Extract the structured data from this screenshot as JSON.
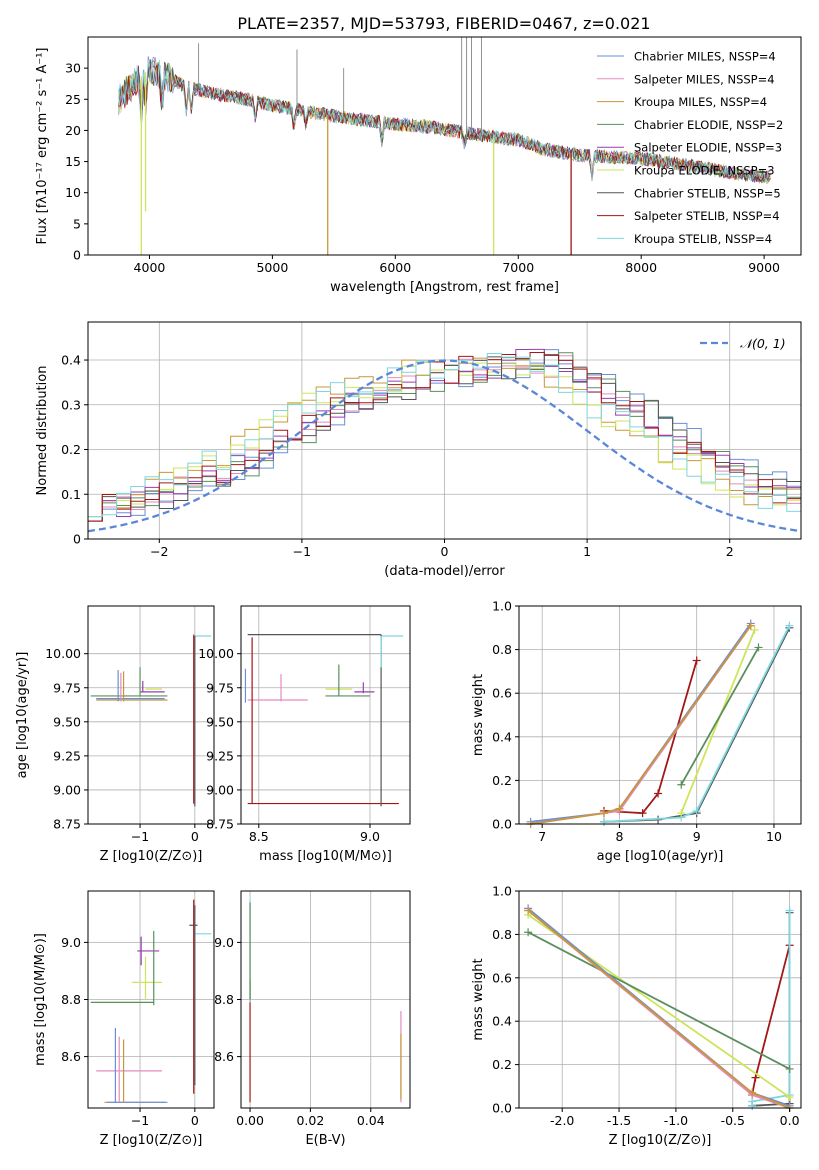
{
  "figure": {
    "title": "PLATE=2357, MJD=53793, FIBERID=0467, z=0.021"
  },
  "palette": {
    "Chabrier MILES": "#6a8fd6",
    "Salpeter MILES": "#e58bbd",
    "Kroupa MILES": "#c9973a",
    "Chabrier ELODIE": "#5a8f5c",
    "Salpeter ELODIE": "#9a3db0",
    "Kroupa ELODIE": "#cde55a",
    "Chabrier STELIB": "#555555",
    "Salpeter STELIB": "#a31717",
    "Kroupa STELIB": "#7fd6e0"
  },
  "chart_data": [
    {
      "id": "spectrum",
      "type": "line",
      "xlabel": "wavelength [Angstrom, rest frame]",
      "ylabel": "Flux [fλ10⁻¹⁷ erg cm⁻² s⁻¹ A⁻¹]",
      "xlim": [
        3500,
        9300
      ],
      "ylim": [
        0,
        35
      ],
      "xticks": [
        4000,
        5000,
        6000,
        7000,
        8000,
        9000
      ],
      "yticks": [
        0,
        5,
        10,
        15,
        20,
        25,
        30
      ],
      "grid": false,
      "legend_position": "top-right",
      "series": [
        {
          "name": "Chabrier MILES, NSSP=4",
          "color_key": "Chabrier MILES"
        },
        {
          "name": "Salpeter MILES, NSSP=4",
          "color_key": "Salpeter MILES"
        },
        {
          "name": "Kroupa MILES, NSSP=4",
          "color_key": "Kroupa MILES"
        },
        {
          "name": "Chabrier ELODIE, NSSP=2",
          "color_key": "Chabrier ELODIE"
        },
        {
          "name": "Salpeter ELODIE, NSSP=3",
          "color_key": "Salpeter ELODIE"
        },
        {
          "name": "Kroupa ELODIE, NSSP=3",
          "color_key": "Kroupa ELODIE"
        },
        {
          "name": "Chabrier STELIB, NSSP=5",
          "color_key": "Chabrier STELIB"
        },
        {
          "name": "Salpeter STELIB, NSSP=4",
          "color_key": "Salpeter STELIB"
        },
        {
          "name": "Kroupa STELIB, NSSP=4",
          "color_key": "Kroupa STELIB"
        }
      ],
      "continuum_x": [
        3750,
        3900,
        4000,
        4100,
        4300,
        4500,
        4800,
        5000,
        5300,
        5600,
        6000,
        6300,
        6600,
        7000,
        7200,
        7500,
        8000,
        8500,
        8800,
        9000
      ],
      "continuum_y": [
        25,
        28,
        30,
        29,
        27,
        26,
        25,
        24,
        23,
        22,
        21,
        20.5,
        19.5,
        18.5,
        17,
        16,
        15.5,
        14,
        13,
        12.5
      ],
      "dips": [
        {
          "x": 3934,
          "y": 0,
          "color_key": "Kroupa ELODIE"
        },
        {
          "x": 3968,
          "y": 7,
          "color_key": "Kroupa ELODIE"
        },
        {
          "x": 5450,
          "y": 0,
          "color_key": "Kroupa MILES"
        },
        {
          "x": 6800,
          "y": 0,
          "color_key": "Kroupa ELODIE"
        },
        {
          "x": 7430,
          "y": 0,
          "color_key": "Salpeter STELIB"
        }
      ],
      "spikes": [
        {
          "x": 4400,
          "y": 34
        },
        {
          "x": 5200,
          "y": 33
        },
        {
          "x": 5580,
          "y": 30
        },
        {
          "x": 6540,
          "y": 35
        },
        {
          "x": 6580,
          "y": 35
        },
        {
          "x": 6620,
          "y": 35
        },
        {
          "x": 6700,
          "y": 35
        }
      ]
    },
    {
      "id": "residuals",
      "type": "histogram",
      "xlabel": "(data-model)/error",
      "ylabel": "Normed distribution",
      "xlim": [
        -2.5,
        2.5
      ],
      "ylim": [
        0,
        0.485
      ],
      "xticks": [
        -2,
        -1,
        0,
        1,
        2
      ],
      "yticks": [
        0.0,
        0.1,
        0.2,
        0.3,
        0.4
      ],
      "grid": true,
      "legend": [
        "𝒩(0, 1)"
      ],
      "legend_position": "top-right",
      "bin_width": 0.1,
      "hist_base": [
        0.07,
        0.07,
        0.08,
        0.08,
        0.09,
        0.1,
        0.11,
        0.12,
        0.14,
        0.15,
        0.17,
        0.18,
        0.2,
        0.22,
        0.24,
        0.26,
        0.28,
        0.3,
        0.31,
        0.32,
        0.33,
        0.34,
        0.35,
        0.36,
        0.37,
        0.37,
        0.38,
        0.38,
        0.38,
        0.39,
        0.4,
        0.4,
        0.39,
        0.38,
        0.36,
        0.34,
        0.32,
        0.3,
        0.28,
        0.26,
        0.24,
        0.22,
        0.2,
        0.18,
        0.16,
        0.15,
        0.13,
        0.12,
        0.1,
        0.09
      ],
      "gaussian": {
        "mean": 0,
        "sigma": 1,
        "color": "#5b87d9"
      }
    },
    {
      "id": "age-vs-Z",
      "type": "errorbar",
      "xlabel": "Z [log10(Z/Z⊙)]",
      "ylabel": "age  [log10(age/yr)]",
      "xlim": [
        -1.95,
        0.35
      ],
      "ylim": [
        8.75,
        10.35
      ],
      "xticks": [
        -1,
        0
      ],
      "yticks": [
        8.75,
        9.0,
        9.25,
        9.5,
        9.75,
        10.0
      ],
      "grid": true,
      "hbars": [
        {
          "y": 9.69,
          "x0": -1.9,
          "x1": -0.5,
          "color_key": "Chabrier ELODIE"
        },
        {
          "y": 9.66,
          "x0": -1.8,
          "x1": -0.5,
          "color_key": "Kroupa MILES"
        },
        {
          "y": 9.67,
          "x0": -1.8,
          "x1": -0.55,
          "color_key": "Chabrier MILES"
        },
        {
          "y": 9.74,
          "x0": -0.9,
          "x1": -0.6,
          "color_key": "Kroupa ELODIE"
        },
        {
          "y": 9.72,
          "x0": -1.0,
          "x1": -0.55,
          "color_key": "Salpeter ELODIE"
        },
        {
          "y": 10.13,
          "x0": 0.0,
          "x1": 0.3,
          "color_key": "Kroupa STELIB"
        }
      ],
      "vbars": [
        {
          "x": -1.4,
          "y0": 9.65,
          "y1": 9.88,
          "color_key": "Chabrier MILES"
        },
        {
          "x": -1.35,
          "y0": 9.65,
          "y1": 9.86,
          "color_key": "Salpeter MILES"
        },
        {
          "x": -1.3,
          "y0": 9.65,
          "y1": 9.87,
          "color_key": "Kroupa MILES"
        },
        {
          "x": -1.0,
          "y0": 9.69,
          "y1": 9.9,
          "color_key": "Chabrier ELODIE"
        },
        {
          "x": -0.95,
          "y0": 9.72,
          "y1": 9.8,
          "color_key": "Salpeter ELODIE"
        },
        {
          "x": -0.02,
          "y0": 8.9,
          "y1": 10.14,
          "color_key": "Salpeter STELIB"
        },
        {
          "x": 0.0,
          "y0": 8.88,
          "y1": 10.13,
          "color_key": "Chabrier STELIB"
        }
      ]
    },
    {
      "id": "age-vs-mass",
      "type": "errorbar",
      "xlabel": "mass [log10(M/M⊙)]",
      "ylabel": "",
      "xlim": [
        8.42,
        9.18
      ],
      "ylim": [
        8.75,
        10.35
      ],
      "xticks": [
        8.5,
        9.0
      ],
      "yticks": [
        8.75,
        9.0,
        9.25,
        9.5,
        9.75,
        10.0
      ],
      "grid": true,
      "hbars": [
        {
          "y": 8.9,
          "x0": 8.45,
          "x1": 9.13,
          "color_key": "Salpeter STELIB"
        },
        {
          "y": 10.14,
          "x0": 8.45,
          "x1": 9.05,
          "color_key": "Chabrier STELIB"
        },
        {
          "y": 10.13,
          "x0": 9.05,
          "x1": 9.15,
          "color_key": "Kroupa STELIB"
        },
        {
          "y": 9.66,
          "x0": 8.45,
          "x1": 8.72,
          "color_key": "Salpeter MILES"
        },
        {
          "y": 9.69,
          "x0": 8.8,
          "x1": 9.0,
          "color_key": "Chabrier ELODIE"
        },
        {
          "y": 9.72,
          "x0": 8.93,
          "x1": 9.02,
          "color_key": "Salpeter ELODIE"
        },
        {
          "y": 9.74,
          "x0": 8.8,
          "x1": 8.92,
          "color_key": "Kroupa ELODIE"
        }
      ],
      "vbars": [
        {
          "x": 8.44,
          "y0": 9.64,
          "y1": 9.89,
          "color_key": "Chabrier MILES"
        },
        {
          "x": 8.47,
          "y0": 8.9,
          "y1": 10.12,
          "color_key": "Salpeter STELIB"
        },
        {
          "x": 8.6,
          "y0": 9.65,
          "y1": 9.85,
          "color_key": "Salpeter MILES"
        },
        {
          "x": 8.86,
          "y0": 9.69,
          "y1": 9.92,
          "color_key": "Chabrier ELODIE"
        },
        {
          "x": 8.97,
          "y0": 9.71,
          "y1": 9.79,
          "color_key": "Salpeter ELODIE"
        },
        {
          "x": 9.05,
          "y0": 8.88,
          "y1": 10.14,
          "color_key": "Chabrier STELIB"
        },
        {
          "x": 9.05,
          "y0": 9.9,
          "y1": 10.13,
          "color_key": "Kroupa STELIB"
        }
      ]
    },
    {
      "id": "mass-weight-vs-age",
      "type": "line",
      "xlabel": "age  [log10(age/yr)]",
      "ylabel": "mass weight",
      "xlim": [
        6.7,
        10.35
      ],
      "ylim": [
        0.0,
        1.0
      ],
      "xticks": [
        7,
        8,
        9,
        10
      ],
      "yticks": [
        0.0,
        0.2,
        0.4,
        0.6,
        0.8,
        1.0
      ],
      "grid": true,
      "series": [
        {
          "color_key": "Salpeter STELIB",
          "x": [
            7.8,
            8.3,
            8.5,
            9.0
          ],
          "y": [
            0.06,
            0.05,
            0.14,
            0.75
          ]
        },
        {
          "color_key": "Chabrier STELIB",
          "x": [
            7.8,
            8.5,
            9.0,
            10.2
          ],
          "y": [
            0.01,
            0.02,
            0.05,
            0.9
          ]
        },
        {
          "color_key": "Kroupa STELIB",
          "x": [
            7.8,
            8.8,
            9.0,
            10.2
          ],
          "y": [
            0.01,
            0.03,
            0.06,
            0.91
          ]
        },
        {
          "color_key": "Kroupa ELODIE",
          "x": [
            8.8,
            9.75
          ],
          "y": [
            0.05,
            0.89
          ]
        },
        {
          "color_key": "Chabrier ELODIE",
          "x": [
            8.8,
            9.8
          ],
          "y": [
            0.18,
            0.81
          ]
        },
        {
          "color_key": "Chabrier MILES",
          "x": [
            6.85,
            7.8,
            8.0,
            9.7
          ],
          "y": [
            0.01,
            0.05,
            0.07,
            0.92
          ]
        },
        {
          "color_key": "Salpeter MILES",
          "x": [
            6.85,
            7.8,
            8.0,
            9.7
          ],
          "y": [
            0.0,
            0.05,
            0.06,
            0.91
          ]
        },
        {
          "color_key": "Kroupa MILES",
          "x": [
            6.85,
            7.8,
            8.0,
            9.7
          ],
          "y": [
            0.0,
            0.05,
            0.07,
            0.91
          ]
        }
      ]
    },
    {
      "id": "mass-vs-Z",
      "type": "errorbar",
      "xlabel": "Z [log10(Z/Z⊙)]",
      "ylabel": "mass [log10(M/M⊙)]",
      "xlim": [
        -1.95,
        0.35
      ],
      "ylim": [
        8.42,
        9.18
      ],
      "xticks": [
        -1,
        0
      ],
      "yticks": [
        8.6,
        8.8,
        9.0
      ],
      "grid": true,
      "hbars": [
        {
          "y": 8.79,
          "x0": -1.9,
          "x1": -0.75,
          "color_key": "Chabrier ELODIE"
        },
        {
          "y": 8.97,
          "x0": -1.05,
          "x1": -0.65,
          "color_key": "Salpeter ELODIE"
        },
        {
          "y": 8.86,
          "x0": -1.15,
          "x1": -0.6,
          "color_key": "Kroupa ELODIE"
        },
        {
          "y": 8.55,
          "x0": -1.8,
          "x1": -0.6,
          "color_key": "Salpeter MILES"
        },
        {
          "y": 8.44,
          "x0": -1.65,
          "x1": -0.55,
          "color_key": "Kroupa MILES"
        },
        {
          "y": 8.44,
          "x0": -1.6,
          "x1": -0.5,
          "color_key": "Chabrier MILES"
        },
        {
          "y": 9.03,
          "x0": 0.0,
          "x1": 0.3,
          "color_key": "Kroupa STELIB"
        },
        {
          "y": 9.06,
          "x0": -0.1,
          "x1": 0.05,
          "color_key": "Chabrier STELIB"
        }
      ],
      "vbars": [
        {
          "x": -1.45,
          "y0": 8.44,
          "y1": 8.7,
          "color_key": "Chabrier MILES"
        },
        {
          "x": -1.38,
          "y0": 8.44,
          "y1": 8.67,
          "color_key": "Salpeter MILES"
        },
        {
          "x": -1.3,
          "y0": 8.44,
          "y1": 8.66,
          "color_key": "Kroupa MILES"
        },
        {
          "x": -0.75,
          "y0": 8.78,
          "y1": 9.04,
          "color_key": "Chabrier ELODIE"
        },
        {
          "x": -0.98,
          "y0": 8.92,
          "y1": 9.02,
          "color_key": "Salpeter ELODIE"
        },
        {
          "x": -0.9,
          "y0": 8.8,
          "y1": 8.95,
          "color_key": "Kroupa ELODIE"
        },
        {
          "x": -0.02,
          "y0": 8.47,
          "y1": 9.15,
          "color_key": "Salpeter STELIB"
        },
        {
          "x": 0.0,
          "y0": 8.5,
          "y1": 9.13,
          "color_key": "Chabrier STELIB"
        }
      ]
    },
    {
      "id": "mass-vs-EBV",
      "type": "errorbar",
      "xlabel": "E(B-V)",
      "ylabel": "",
      "xlim": [
        -0.003,
        0.053
      ],
      "ylim": [
        8.42,
        9.18
      ],
      "xticks": [
        0.0,
        0.02,
        0.04
      ],
      "yticks": [
        8.6,
        8.8,
        9.0
      ],
      "grid": true,
      "vbars": [
        {
          "x": 0.0,
          "y0": 8.44,
          "y1": 8.87,
          "color_key": "Salpeter STELIB"
        },
        {
          "x": 0.0,
          "y0": 8.79,
          "y1": 9.15,
          "color_key": "Kroupa STELIB"
        },
        {
          "x": 0.0,
          "y0": 8.8,
          "y1": 9.14,
          "color_key": "Chabrier ELODIE"
        },
        {
          "x": 0.05,
          "y0": 8.44,
          "y1": 8.76,
          "color_key": "Salpeter MILES"
        },
        {
          "x": 0.05,
          "y0": 8.45,
          "y1": 8.68,
          "color_key": "Kroupa MILES"
        }
      ],
      "hbars": []
    },
    {
      "id": "mass-weight-vs-Z",
      "type": "line",
      "xlabel": "Z [log10(Z/Z⊙)]",
      "ylabel": "mass weight",
      "xlim": [
        -2.38,
        0.1
      ],
      "ylim": [
        0.0,
        1.0
      ],
      "xticks": [
        -2.0,
        -1.5,
        -1.0,
        -0.5,
        0.0
      ],
      "yticks": [
        0.0,
        0.2,
        0.4,
        0.6,
        0.8,
        1.0
      ],
      "grid": true,
      "series": [
        {
          "color_key": "Salpeter STELIB",
          "x": [
            -0.33,
            -0.3,
            0.0
          ],
          "y": [
            0.06,
            0.14,
            0.75
          ]
        },
        {
          "color_key": "Chabrier STELIB",
          "x": [
            -0.33,
            0.0,
            0.0
          ],
          "y": [
            0.01,
            0.02,
            0.9
          ]
        },
        {
          "color_key": "Kroupa STELIB",
          "x": [
            -0.33,
            -0.33,
            0.0,
            0.0
          ],
          "y": [
            0.01,
            0.03,
            0.06,
            0.91
          ]
        },
        {
          "color_key": "Kroupa ELODIE",
          "x": [
            -2.3,
            0.0
          ],
          "y": [
            0.89,
            0.05
          ]
        },
        {
          "color_key": "Chabrier ELODIE",
          "x": [
            -2.3,
            0.0
          ],
          "y": [
            0.81,
            0.18
          ]
        },
        {
          "color_key": "Chabrier MILES",
          "x": [
            -2.3,
            -0.33,
            0.0
          ],
          "y": [
            0.92,
            0.07,
            0.01
          ]
        },
        {
          "color_key": "Salpeter MILES",
          "x": [
            -2.3,
            -0.33,
            0.0
          ],
          "y": [
            0.91,
            0.06,
            0.0
          ]
        },
        {
          "color_key": "Kroupa MILES",
          "x": [
            -2.3,
            -0.33,
            0.0
          ],
          "y": [
            0.91,
            0.07,
            0.0
          ]
        }
      ]
    }
  ]
}
